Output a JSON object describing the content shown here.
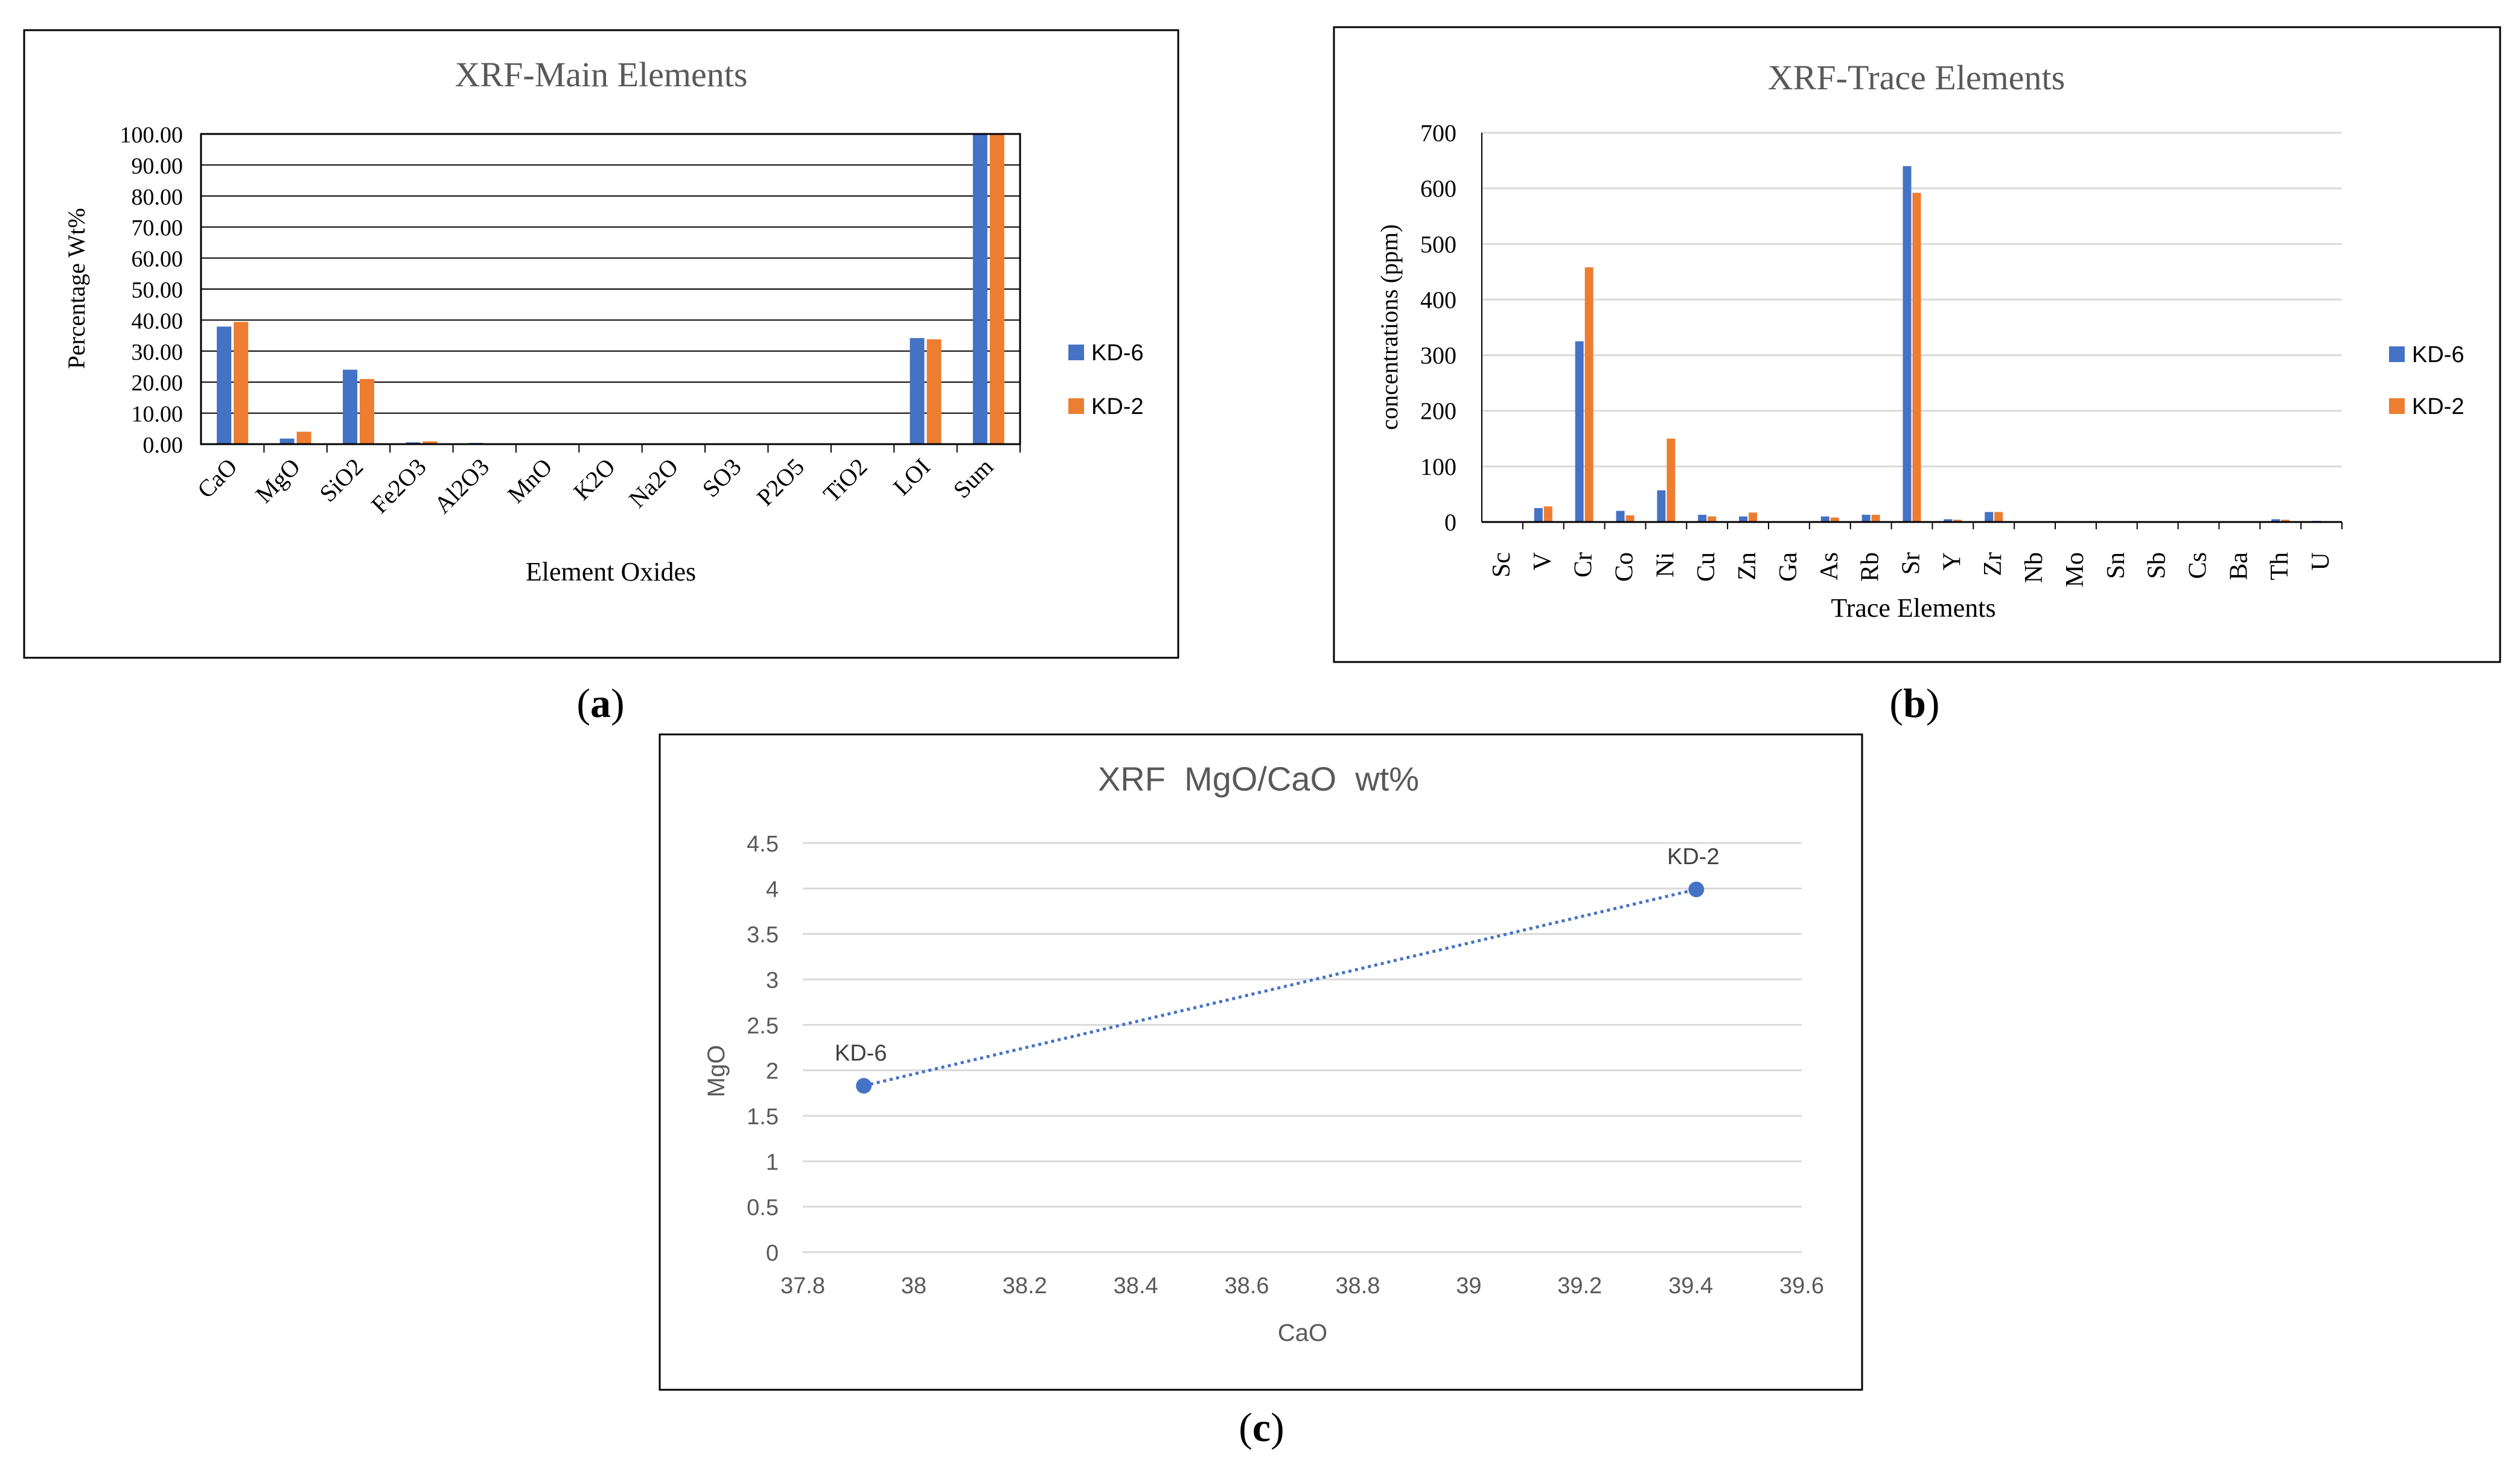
{
  "colors": {
    "kd6": "#4472C4",
    "kd2": "#ED7D31",
    "axis_text": "#000000",
    "scatter_text": "#595959",
    "scatter_title": "#595959",
    "grid": "#D9D9D9",
    "frame": "#000000",
    "marker": "#4472C4"
  },
  "chart_data": [
    {
      "panel_label": "(a)",
      "panel_letter": "a",
      "type": "bar",
      "title": "XRF-Main Elements",
      "xlabel": "Element Oxides",
      "ylabel": "Percentage Wt%",
      "ylim": [
        0,
        100
      ],
      "y_ticks": [
        "0.00",
        "10.00",
        "20.00",
        "30.00",
        "40.00",
        "50.00",
        "60.00",
        "70.00",
        "80.00",
        "90.00",
        "100.00"
      ],
      "categories": [
        "CaO",
        "MgO",
        "SiO2",
        "Fe2O3",
        "Al2O3",
        "MnO",
        "K2O",
        "Na2O",
        "SO3",
        "P2O5",
        "TiO2",
        "LOI",
        "Sum"
      ],
      "series": [
        {
          "name": "KD-6",
          "values": [
            37.9,
            1.8,
            24.0,
            0.6,
            0.4,
            0.0,
            0.0,
            0.0,
            0.0,
            0.0,
            0.0,
            34.2,
            100.0
          ]
        },
        {
          "name": "KD-2",
          "values": [
            39.4,
            4.0,
            21.0,
            0.9,
            0.2,
            0.0,
            0.0,
            0.0,
            0.0,
            0.0,
            0.0,
            33.8,
            100.0
          ]
        }
      ],
      "legend": "right"
    },
    {
      "panel_label": "(b)",
      "panel_letter": "b",
      "type": "bar",
      "title": "XRF-Trace Elements",
      "xlabel": "Trace Elements",
      "ylabel": "concentrations (ppm)",
      "ylim": [
        0,
        700
      ],
      "y_ticks": [
        "0",
        "100",
        "200",
        "300",
        "400",
        "500",
        "600",
        "700"
      ],
      "categories": [
        "Sc",
        "V",
        "Cr",
        "Co",
        "Ni",
        "Cu",
        "Zn",
        "Ga",
        "As",
        "Rb",
        "Sr",
        "Y",
        "Zr",
        "Nb",
        "Mo",
        "Sn",
        "Sb",
        "Cs",
        "Ba",
        "Th",
        "U"
      ],
      "series": [
        {
          "name": "KD-6",
          "values": [
            0,
            25,
            325,
            20,
            57,
            13,
            10,
            0,
            10,
            13,
            640,
            5,
            18,
            0,
            0,
            0,
            0,
            0,
            0,
            5,
            2
          ]
        },
        {
          "name": "KD-2",
          "values": [
            0,
            28,
            458,
            12,
            150,
            10,
            17,
            0,
            8,
            13,
            592,
            4,
            18,
            0,
            0,
            0,
            0,
            0,
            0,
            4,
            0
          ]
        }
      ],
      "legend": "right"
    },
    {
      "panel_label": "(c)",
      "panel_letter": "c",
      "type": "scatter",
      "title": "XRF  MgO/CaO  wt%",
      "xlabel": "CaO",
      "ylabel": "MgO",
      "xlim": [
        37.8,
        39.6
      ],
      "ylim": [
        0,
        4.5
      ],
      "x_ticks": [
        "37.8",
        "38",
        "38.2",
        "38.4",
        "38.6",
        "38.8",
        "39",
        "39.2",
        "39.4",
        "39.6"
      ],
      "y_ticks": [
        "0",
        "0.5",
        "1",
        "1.5",
        "2",
        "2.5",
        "3",
        "3.5",
        "4",
        "4.5"
      ],
      "points": [
        {
          "label": "KD-6",
          "x": 37.91,
          "y": 1.83
        },
        {
          "label": "KD-2",
          "x": 39.41,
          "y": 3.99
        }
      ],
      "trendline": "dotted-linear"
    }
  ]
}
